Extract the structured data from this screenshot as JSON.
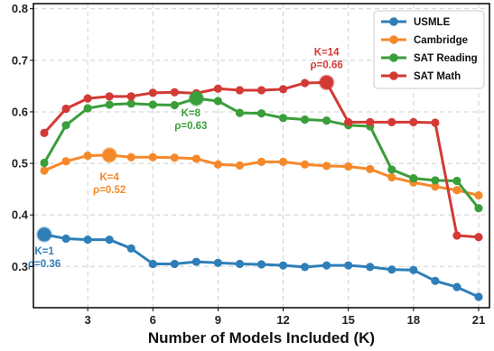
{
  "chart_data": {
    "type": "line",
    "title": "",
    "xlabel": "Number of Models Included (K)",
    "ylabel": "",
    "xlim": [
      0.5,
      21.5
    ],
    "ylim": [
      0.22,
      0.81
    ],
    "xticks": [
      3,
      6,
      9,
      12,
      15,
      18,
      21
    ],
    "yticks": [
      0.3,
      0.4,
      0.5,
      0.6,
      0.7,
      0.8
    ],
    "grid": true,
    "legend_position": "top-right",
    "x": [
      1,
      2,
      3,
      4,
      5,
      6,
      7,
      8,
      9,
      10,
      11,
      12,
      13,
      14,
      15,
      16,
      17,
      18,
      19,
      20,
      21
    ],
    "series": [
      {
        "name": "USMLE",
        "color": "#2e7fb8",
        "values": [
          0.362,
          0.354,
          0.352,
          0.352,
          0.335,
          0.305,
          0.305,
          0.309,
          0.307,
          0.305,
          0.304,
          0.302,
          0.299,
          0.302,
          0.302,
          0.299,
          0.294,
          0.293,
          0.272,
          0.26,
          0.241
        ],
        "highlight_index": 0
      },
      {
        "name": "Cambridge",
        "color": "#f5892a",
        "values": [
          0.486,
          0.504,
          0.515,
          0.516,
          0.512,
          0.512,
          0.511,
          0.509,
          0.498,
          0.496,
          0.503,
          0.503,
          0.498,
          0.495,
          0.494,
          0.489,
          0.473,
          0.463,
          0.455,
          0.448,
          0.438
        ],
        "highlight_index": 3
      },
      {
        "name": "SAT Reading",
        "color": "#3a9e3a",
        "values": [
          0.501,
          0.574,
          0.607,
          0.614,
          0.616,
          0.614,
          0.613,
          0.626,
          0.621,
          0.598,
          0.597,
          0.588,
          0.585,
          0.583,
          0.574,
          0.572,
          0.488,
          0.471,
          0.467,
          0.466,
          0.413
        ],
        "highlight_index": 7
      },
      {
        "name": "SAT Math",
        "color": "#d33a35",
        "values": [
          0.559,
          0.606,
          0.626,
          0.63,
          0.63,
          0.637,
          0.638,
          0.636,
          0.645,
          0.642,
          0.642,
          0.644,
          0.656,
          0.657,
          0.58,
          0.58,
          0.58,
          0.58,
          0.579,
          0.36,
          0.357
        ],
        "highlight_index": 13
      }
    ],
    "annotations": [
      {
        "series": "USMLE",
        "lines": [
          "K=1",
          "ρ=0.36"
        ]
      },
      {
        "series": "Cambridge",
        "lines": [
          "K=4",
          "ρ=0.52"
        ]
      },
      {
        "series": "SAT Reading",
        "lines": [
          "K=8",
          "ρ=0.63"
        ]
      },
      {
        "series": "SAT Math",
        "lines": [
          "K=14",
          "ρ=0.66"
        ]
      }
    ]
  }
}
